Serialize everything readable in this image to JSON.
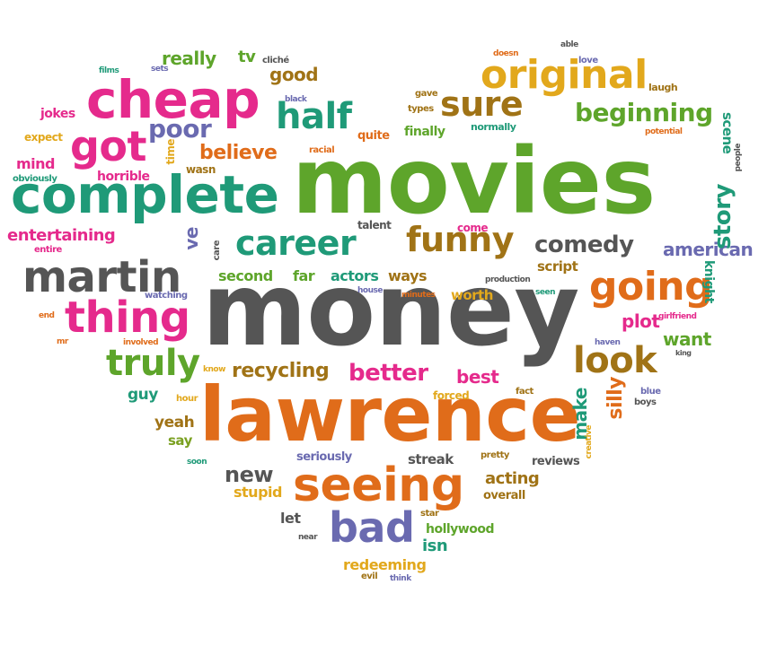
{
  "palette": {
    "green": "#5ea52b",
    "teal": "#1f9a78",
    "pink": "#e52a8c",
    "orange": "#e06c1a",
    "gray": "#555555",
    "purple": "#6a6ab0",
    "gold": "#e2a81c",
    "brown": "#a07316",
    "olive": "#7aa020"
  },
  "words": [
    {
      "t": "movies",
      "c": "green"
    },
    {
      "t": "money",
      "c": "gray"
    },
    {
      "t": "lawrence",
      "c": "orange"
    },
    {
      "t": "complete",
      "c": "teal"
    },
    {
      "t": "cheap",
      "c": "pink"
    },
    {
      "t": "original",
      "c": "gold"
    },
    {
      "t": "martin",
      "c": "gray"
    },
    {
      "t": "thing",
      "c": "pink"
    },
    {
      "t": "seeing",
      "c": "orange"
    },
    {
      "t": "career",
      "c": "teal"
    },
    {
      "t": "funny",
      "c": "brown"
    },
    {
      "t": "going",
      "c": "orange"
    },
    {
      "t": "half",
      "c": "teal"
    },
    {
      "t": "got",
      "c": "pink"
    },
    {
      "t": "truly",
      "c": "green"
    },
    {
      "t": "look",
      "c": "brown"
    },
    {
      "t": "bad",
      "c": "purple"
    },
    {
      "t": "sure",
      "c": "brown"
    },
    {
      "t": "beginning",
      "c": "green"
    },
    {
      "t": "comedy",
      "c": "gray"
    },
    {
      "t": "poor",
      "c": "purple"
    },
    {
      "t": "better",
      "c": "pink"
    },
    {
      "t": "recycling",
      "c": "brown"
    },
    {
      "t": "believe",
      "c": "orange"
    },
    {
      "t": "good",
      "c": "brown"
    },
    {
      "t": "really",
      "c": "green"
    },
    {
      "t": "american",
      "c": "purple"
    },
    {
      "t": "story",
      "c": "teal"
    },
    {
      "t": "entertaining",
      "c": "pink"
    },
    {
      "t": "new",
      "c": "gray"
    },
    {
      "t": "best",
      "c": "pink"
    },
    {
      "t": "plot",
      "c": "pink"
    },
    {
      "t": "acting",
      "c": "brown"
    },
    {
      "t": "silly",
      "c": "orange"
    },
    {
      "t": "make",
      "c": "teal"
    },
    {
      "t": "want",
      "c": "green"
    },
    {
      "t": "second",
      "c": "green"
    },
    {
      "t": "far",
      "c": "green"
    },
    {
      "t": "actors",
      "c": "teal"
    },
    {
      "t": "ways",
      "c": "brown"
    },
    {
      "t": "worth",
      "c": "gold"
    },
    {
      "t": "script",
      "c": "brown"
    },
    {
      "t": "ve",
      "c": "purple"
    },
    {
      "t": "isn",
      "c": "teal"
    },
    {
      "t": "hollywood",
      "c": "green"
    },
    {
      "t": "redeeming",
      "c": "gold"
    },
    {
      "t": "stupid",
      "c": "gold"
    },
    {
      "t": "let",
      "c": "gray"
    },
    {
      "t": "streak",
      "c": "gray"
    },
    {
      "t": "seriously",
      "c": "purple"
    },
    {
      "t": "reviews",
      "c": "gray"
    },
    {
      "t": "overall",
      "c": "brown"
    },
    {
      "t": "guy",
      "c": "teal"
    },
    {
      "t": "yeah",
      "c": "brown"
    },
    {
      "t": "say",
      "c": "olive"
    },
    {
      "t": "jokes",
      "c": "pink"
    },
    {
      "t": "mind",
      "c": "pink"
    },
    {
      "t": "horrible",
      "c": "pink"
    },
    {
      "t": "expect",
      "c": "gold"
    },
    {
      "t": "quite",
      "c": "orange"
    },
    {
      "t": "finally",
      "c": "green"
    },
    {
      "t": "normally",
      "c": "teal"
    },
    {
      "t": "scene",
      "c": "teal"
    },
    {
      "t": "knight",
      "c": "teal"
    },
    {
      "t": "tv",
      "c": "green"
    },
    {
      "t": "cliché",
      "c": "gray"
    },
    {
      "t": "laugh",
      "c": "brown"
    },
    {
      "t": "love",
      "c": "purple"
    },
    {
      "t": "able",
      "c": "gray"
    },
    {
      "t": "doesn",
      "c": "orange"
    },
    {
      "t": "gave",
      "c": "brown"
    },
    {
      "t": "types",
      "c": "brown"
    },
    {
      "t": "black",
      "c": "purple"
    },
    {
      "t": "films",
      "c": "teal"
    },
    {
      "t": "sets",
      "c": "purple"
    },
    {
      "t": "potential",
      "c": "orange"
    },
    {
      "t": "people",
      "c": "gray"
    },
    {
      "t": "racial",
      "c": "orange"
    },
    {
      "t": "wasn",
      "c": "brown"
    },
    {
      "t": "time",
      "c": "gold"
    },
    {
      "t": "obviously",
      "c": "teal"
    },
    {
      "t": "entire",
      "c": "pink"
    },
    {
      "t": "talent",
      "c": "gray"
    },
    {
      "t": "come",
      "c": "pink"
    },
    {
      "t": "care",
      "c": "gray"
    },
    {
      "t": "watching",
      "c": "purple"
    },
    {
      "t": "house",
      "c": "purple"
    },
    {
      "t": "minutes",
      "c": "orange"
    },
    {
      "t": "production",
      "c": "gray"
    },
    {
      "t": "seen",
      "c": "teal"
    },
    {
      "t": "girlfriend",
      "c": "pink"
    },
    {
      "t": "haven",
      "c": "purple"
    },
    {
      "t": "king",
      "c": "gray"
    },
    {
      "t": "end",
      "c": "orange"
    },
    {
      "t": "mr",
      "c": "orange"
    },
    {
      "t": "involved",
      "c": "orange"
    },
    {
      "t": "know",
      "c": "gold"
    },
    {
      "t": "hour",
      "c": "gold"
    },
    {
      "t": "forced",
      "c": "gold"
    },
    {
      "t": "fact",
      "c": "brown"
    },
    {
      "t": "blue",
      "c": "purple"
    },
    {
      "t": "boys",
      "c": "gray"
    },
    {
      "t": "creative",
      "c": "gold"
    },
    {
      "t": "soon",
      "c": "teal"
    },
    {
      "t": "pretty",
      "c": "brown"
    },
    {
      "t": "star",
      "c": "brown"
    },
    {
      "t": "near",
      "c": "gray"
    },
    {
      "t": "evil",
      "c": "brown"
    },
    {
      "t": "think",
      "c": "purple"
    }
  ]
}
